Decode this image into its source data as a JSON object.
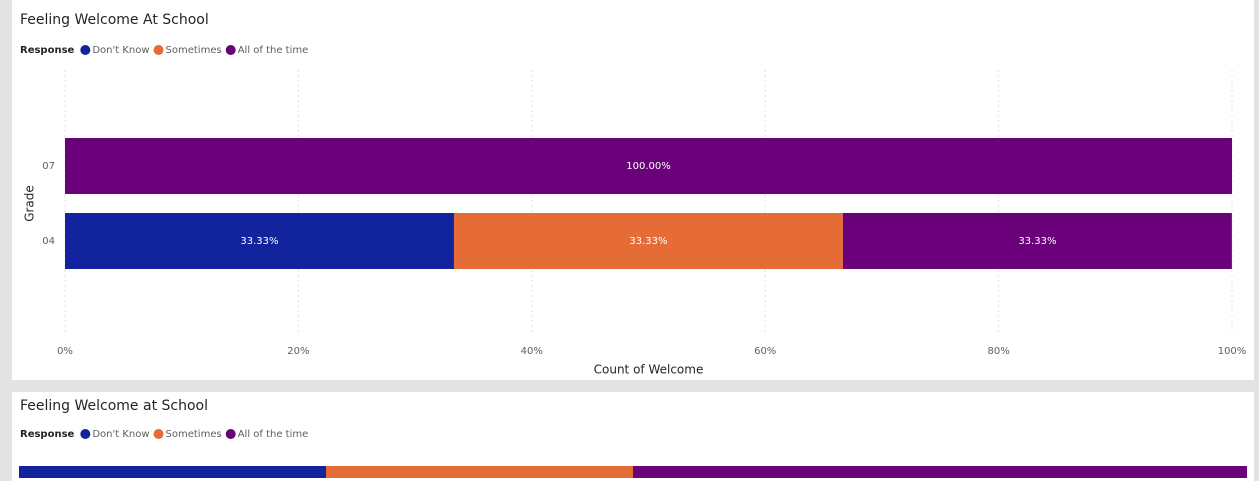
{
  "chart_data": [
    {
      "type": "stacked_barh",
      "title": "Feeling Welcome At School",
      "legend_title": "Response",
      "categories": [
        "07",
        "04"
      ],
      "series": [
        {
          "name": "Don't Know",
          "color": "#12239e",
          "values": [
            null,
            33.33
          ],
          "value_labels": [
            null,
            "33.33%"
          ]
        },
        {
          "name": "Sometimes",
          "color": "#e66c37",
          "values": [
            null,
            33.33
          ],
          "value_labels": [
            null,
            "33.33%"
          ]
        },
        {
          "name": "All of the time",
          "color": "#6b007b",
          "values": [
            100,
            33.33
          ],
          "value_labels": [
            "100.00%",
            "33.33%"
          ]
        }
      ],
      "xlim": [
        0,
        100
      ],
      "xticks": [
        {
          "value": 0,
          "label": "0%"
        },
        {
          "value": 20,
          "label": "20%"
        },
        {
          "value": 40,
          "label": "40%"
        },
        {
          "value": 60,
          "label": "60%"
        },
        {
          "value": 80,
          "label": "80%"
        },
        {
          "value": 100,
          "label": "100%"
        }
      ],
      "xlabel": "Count of Welcome",
      "ylabel": "Grade",
      "grid": true
    },
    {
      "type": "stacked_barh",
      "title": "Feeling Welcome at School",
      "legend_title": "Response",
      "categories": [
        null
      ],
      "series": [
        {
          "name": "Don't Know",
          "color": "#12239e",
          "values": [
            25
          ]
        },
        {
          "name": "Sometimes",
          "color": "#e66c37",
          "values": [
            25
          ]
        },
        {
          "name": "All of the time",
          "color": "#6b007b",
          "values": [
            50
          ]
        }
      ]
    }
  ]
}
